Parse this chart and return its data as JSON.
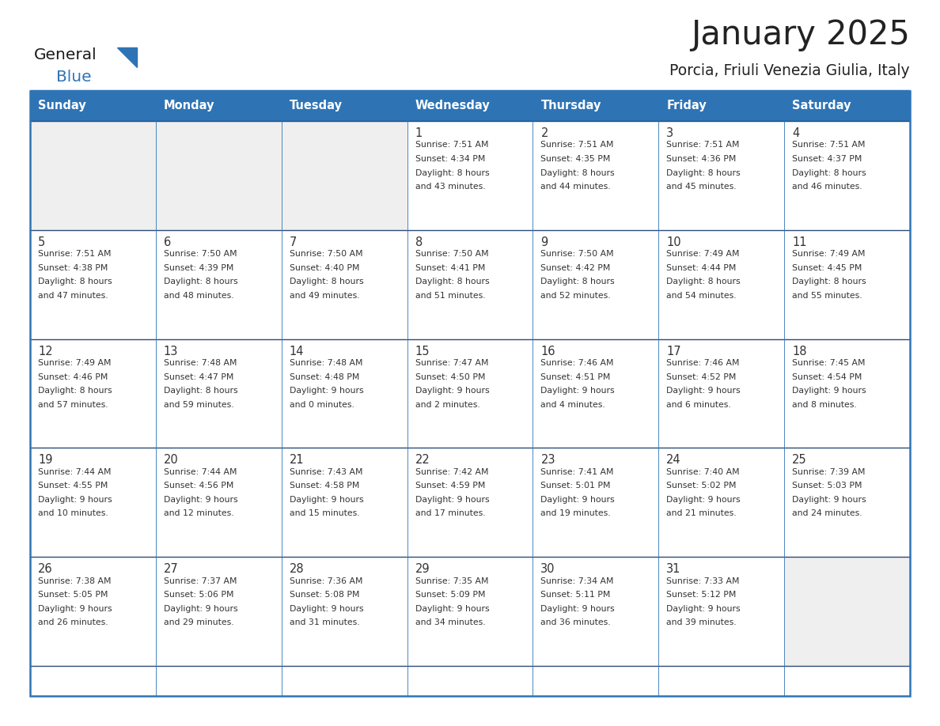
{
  "title": "January 2025",
  "subtitle": "Porcia, Friuli Venezia Giulia, Italy",
  "days_of_week": [
    "Sunday",
    "Monday",
    "Tuesday",
    "Wednesday",
    "Thursday",
    "Friday",
    "Saturday"
  ],
  "header_bg": "#2E74B5",
  "header_text_color": "#FFFFFF",
  "cell_bg_white": "#FFFFFF",
  "cell_bg_gray": "#EFEFEF",
  "row_border_color": "#2E4B7A",
  "col_border_color": "#2E74B5",
  "outer_border_color": "#2E74B5",
  "text_color": "#333333",
  "title_color": "#222222",
  "subtitle_color": "#222222",
  "logo_general_color": "#1a1a1a",
  "logo_blue_color": "#2E74B5",
  "calendar_data": [
    [
      {
        "day": null,
        "sunrise": null,
        "sunset": null,
        "daylight_h": null,
        "daylight_m": null
      },
      {
        "day": null,
        "sunrise": null,
        "sunset": null,
        "daylight_h": null,
        "daylight_m": null
      },
      {
        "day": null,
        "sunrise": null,
        "sunset": null,
        "daylight_h": null,
        "daylight_m": null
      },
      {
        "day": 1,
        "sunrise": "7:51 AM",
        "sunset": "4:34 PM",
        "daylight_h": "8 hours",
        "daylight_m": "and 43 minutes."
      },
      {
        "day": 2,
        "sunrise": "7:51 AM",
        "sunset": "4:35 PM",
        "daylight_h": "8 hours",
        "daylight_m": "and 44 minutes."
      },
      {
        "day": 3,
        "sunrise": "7:51 AM",
        "sunset": "4:36 PM",
        "daylight_h": "8 hours",
        "daylight_m": "and 45 minutes."
      },
      {
        "day": 4,
        "sunrise": "7:51 AM",
        "sunset": "4:37 PM",
        "daylight_h": "8 hours",
        "daylight_m": "and 46 minutes."
      }
    ],
    [
      {
        "day": 5,
        "sunrise": "7:51 AM",
        "sunset": "4:38 PM",
        "daylight_h": "8 hours",
        "daylight_m": "and 47 minutes."
      },
      {
        "day": 6,
        "sunrise": "7:50 AM",
        "sunset": "4:39 PM",
        "daylight_h": "8 hours",
        "daylight_m": "and 48 minutes."
      },
      {
        "day": 7,
        "sunrise": "7:50 AM",
        "sunset": "4:40 PM",
        "daylight_h": "8 hours",
        "daylight_m": "and 49 minutes."
      },
      {
        "day": 8,
        "sunrise": "7:50 AM",
        "sunset": "4:41 PM",
        "daylight_h": "8 hours",
        "daylight_m": "and 51 minutes."
      },
      {
        "day": 9,
        "sunrise": "7:50 AM",
        "sunset": "4:42 PM",
        "daylight_h": "8 hours",
        "daylight_m": "and 52 minutes."
      },
      {
        "day": 10,
        "sunrise": "7:49 AM",
        "sunset": "4:44 PM",
        "daylight_h": "8 hours",
        "daylight_m": "and 54 minutes."
      },
      {
        "day": 11,
        "sunrise": "7:49 AM",
        "sunset": "4:45 PM",
        "daylight_h": "8 hours",
        "daylight_m": "and 55 minutes."
      }
    ],
    [
      {
        "day": 12,
        "sunrise": "7:49 AM",
        "sunset": "4:46 PM",
        "daylight_h": "8 hours",
        "daylight_m": "and 57 minutes."
      },
      {
        "day": 13,
        "sunrise": "7:48 AM",
        "sunset": "4:47 PM",
        "daylight_h": "8 hours",
        "daylight_m": "and 59 minutes."
      },
      {
        "day": 14,
        "sunrise": "7:48 AM",
        "sunset": "4:48 PM",
        "daylight_h": "9 hours",
        "daylight_m": "and 0 minutes."
      },
      {
        "day": 15,
        "sunrise": "7:47 AM",
        "sunset": "4:50 PM",
        "daylight_h": "9 hours",
        "daylight_m": "and 2 minutes."
      },
      {
        "day": 16,
        "sunrise": "7:46 AM",
        "sunset": "4:51 PM",
        "daylight_h": "9 hours",
        "daylight_m": "and 4 minutes."
      },
      {
        "day": 17,
        "sunrise": "7:46 AM",
        "sunset": "4:52 PM",
        "daylight_h": "9 hours",
        "daylight_m": "and 6 minutes."
      },
      {
        "day": 18,
        "sunrise": "7:45 AM",
        "sunset": "4:54 PM",
        "daylight_h": "9 hours",
        "daylight_m": "and 8 minutes."
      }
    ],
    [
      {
        "day": 19,
        "sunrise": "7:44 AM",
        "sunset": "4:55 PM",
        "daylight_h": "9 hours",
        "daylight_m": "and 10 minutes."
      },
      {
        "day": 20,
        "sunrise": "7:44 AM",
        "sunset": "4:56 PM",
        "daylight_h": "9 hours",
        "daylight_m": "and 12 minutes."
      },
      {
        "day": 21,
        "sunrise": "7:43 AM",
        "sunset": "4:58 PM",
        "daylight_h": "9 hours",
        "daylight_m": "and 15 minutes."
      },
      {
        "day": 22,
        "sunrise": "7:42 AM",
        "sunset": "4:59 PM",
        "daylight_h": "9 hours",
        "daylight_m": "and 17 minutes."
      },
      {
        "day": 23,
        "sunrise": "7:41 AM",
        "sunset": "5:01 PM",
        "daylight_h": "9 hours",
        "daylight_m": "and 19 minutes."
      },
      {
        "day": 24,
        "sunrise": "7:40 AM",
        "sunset": "5:02 PM",
        "daylight_h": "9 hours",
        "daylight_m": "and 21 minutes."
      },
      {
        "day": 25,
        "sunrise": "7:39 AM",
        "sunset": "5:03 PM",
        "daylight_h": "9 hours",
        "daylight_m": "and 24 minutes."
      }
    ],
    [
      {
        "day": 26,
        "sunrise": "7:38 AM",
        "sunset": "5:05 PM",
        "daylight_h": "9 hours",
        "daylight_m": "and 26 minutes."
      },
      {
        "day": 27,
        "sunrise": "7:37 AM",
        "sunset": "5:06 PM",
        "daylight_h": "9 hours",
        "daylight_m": "and 29 minutes."
      },
      {
        "day": 28,
        "sunrise": "7:36 AM",
        "sunset": "5:08 PM",
        "daylight_h": "9 hours",
        "daylight_m": "and 31 minutes."
      },
      {
        "day": 29,
        "sunrise": "7:35 AM",
        "sunset": "5:09 PM",
        "daylight_h": "9 hours",
        "daylight_m": "and 34 minutes."
      },
      {
        "day": 30,
        "sunrise": "7:34 AM",
        "sunset": "5:11 PM",
        "daylight_h": "9 hours",
        "daylight_m": "and 36 minutes."
      },
      {
        "day": 31,
        "sunrise": "7:33 AM",
        "sunset": "5:12 PM",
        "daylight_h": "9 hours",
        "daylight_m": "and 39 minutes."
      },
      {
        "day": null,
        "sunrise": null,
        "sunset": null,
        "daylight_h": null,
        "daylight_m": null
      }
    ]
  ]
}
